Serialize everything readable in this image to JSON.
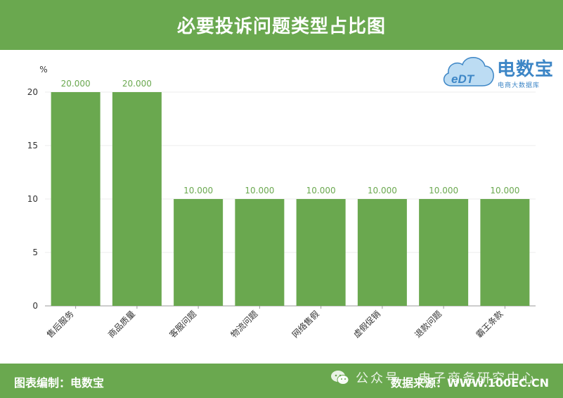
{
  "header": {
    "title": "必要投诉问题类型占比图"
  },
  "logo": {
    "mark_text": "eDT",
    "brand": "电数宝",
    "subtitle": "电商大数据库"
  },
  "footer": {
    "left": "图表编制：电数宝",
    "right": "数据来源：WWW.100EC.CN"
  },
  "watermark": {
    "text": "公众号 · 电子商务研究中心",
    "icon": "wechat-icon"
  },
  "colors": {
    "bar": "#6aa84f",
    "label": "#6aa84f",
    "header_bg": "#6aa84f",
    "axis_text": "#333333",
    "logo": "#3d86c6"
  },
  "chart_data": {
    "type": "bar",
    "title": "必要投诉问题类型占比图",
    "ylabel": "%",
    "xlabel": "",
    "ylim": [
      0,
      20
    ],
    "yticks": [
      0,
      5,
      10,
      15,
      20
    ],
    "categories": [
      "售后服务",
      "商品质量",
      "客服问题",
      "物流问题",
      "网络售假",
      "虚假促销",
      "退款问题",
      "霸王条款"
    ],
    "values": [
      20,
      20,
      10,
      10,
      10,
      10,
      10,
      10
    ],
    "data_labels": [
      "20.000",
      "20.000",
      "10.000",
      "10.000",
      "10.000",
      "10.000",
      "10.000",
      "10.000"
    ],
    "grid": true,
    "legend": "none"
  }
}
